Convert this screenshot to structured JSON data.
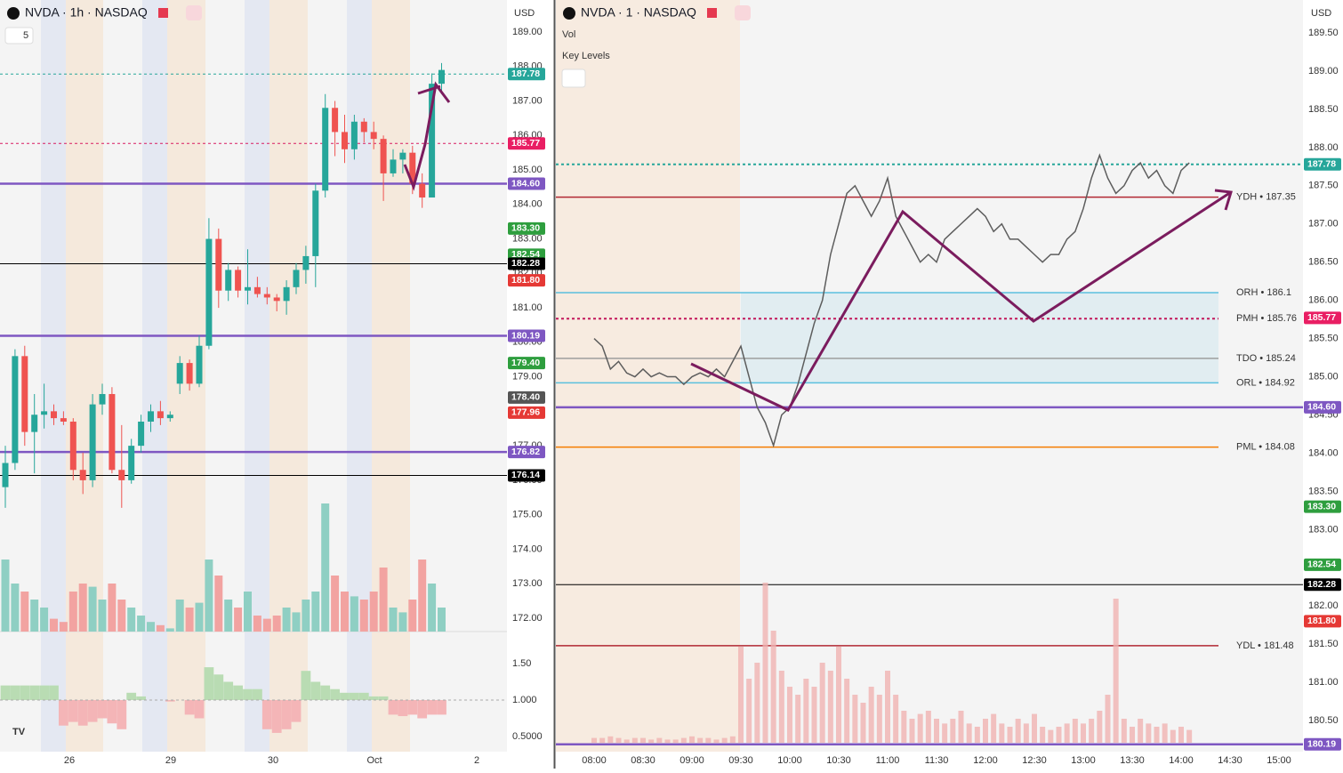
{
  "left": {
    "header": {
      "symbol": "NVDA · 1h · NASDAQ",
      "count": "5",
      "currency": "USD"
    },
    "yticks": [
      {
        "value": 189,
        "label": "189.00"
      },
      {
        "value": 188,
        "label": "188.00"
      },
      {
        "value": 187,
        "label": "187.00"
      },
      {
        "value": 186,
        "label": "186.00"
      },
      {
        "value": 185,
        "label": "185.00"
      },
      {
        "value": 184,
        "label": "184.00"
      },
      {
        "value": 183,
        "label": "183.00"
      },
      {
        "value": 182,
        "label": "182.00"
      },
      {
        "value": 181,
        "label": "181.00"
      },
      {
        "value": 180,
        "label": "180.00"
      },
      {
        "value": 179,
        "label": "179.00"
      },
      {
        "value": 178,
        "label": "178.00"
      },
      {
        "value": 177,
        "label": "177.00"
      },
      {
        "value": 176,
        "label": "176.00"
      },
      {
        "value": 175,
        "label": "175.00"
      },
      {
        "value": 174,
        "label": "174.00"
      },
      {
        "value": 173,
        "label": "173.00"
      },
      {
        "value": 172,
        "label": "172.00"
      }
    ],
    "xticks": [
      "26",
      "29",
      "30",
      "Oct",
      "2"
    ],
    "candles": [
      [
        175.8,
        177.0,
        175.2,
        176.5
      ],
      [
        176.5,
        179.8,
        176.3,
        179.6
      ],
      [
        179.6,
        179.9,
        177.0,
        177.4
      ],
      [
        177.4,
        178.5,
        176.2,
        177.9
      ],
      [
        177.9,
        178.8,
        177.5,
        178.0
      ],
      [
        178.0,
        178.2,
        177.6,
        177.8
      ],
      [
        177.8,
        178.0,
        177.6,
        177.7
      ],
      [
        177.7,
        177.8,
        176.0,
        176.3
      ],
      [
        176.3,
        176.8,
        175.6,
        176.0
      ],
      [
        176.0,
        178.5,
        175.8,
        178.2
      ],
      [
        178.2,
        178.8,
        177.9,
        178.5
      ],
      [
        178.5,
        178.7,
        176.2,
        176.3
      ],
      [
        176.3,
        177.6,
        175.2,
        176.0
      ],
      [
        176.0,
        177.2,
        175.9,
        177.0
      ],
      [
        177.0,
        177.9,
        176.8,
        177.7
      ],
      [
        177.7,
        178.2,
        177.4,
        178.0
      ],
      [
        178.0,
        178.3,
        177.6,
        177.8
      ],
      [
        177.8,
        178.0,
        177.7,
        177.9
      ],
      [
        178.8,
        179.6,
        178.5,
        179.4
      ],
      [
        179.4,
        179.5,
        178.6,
        178.8
      ],
      [
        178.8,
        180.2,
        178.7,
        179.9
      ],
      [
        179.9,
        183.6,
        179.8,
        183.0
      ],
      [
        183.0,
        183.3,
        181.0,
        181.5
      ],
      [
        181.5,
        182.3,
        181.2,
        182.1
      ],
      [
        182.1,
        182.2,
        181.3,
        181.5
      ],
      [
        181.5,
        182.7,
        181.1,
        181.6
      ],
      [
        181.6,
        181.9,
        181.3,
        181.4
      ],
      [
        181.4,
        181.6,
        181.1,
        181.3
      ],
      [
        181.3,
        181.4,
        180.9,
        181.2
      ],
      [
        181.2,
        181.8,
        180.8,
        181.6
      ],
      [
        181.6,
        182.3,
        181.4,
        182.1
      ],
      [
        182.1,
        182.8,
        181.7,
        182.5
      ],
      [
        182.5,
        184.6,
        181.6,
        184.4
      ],
      [
        184.4,
        187.2,
        184.2,
        186.8
      ],
      [
        186.8,
        187.0,
        185.4,
        186.1
      ],
      [
        186.1,
        186.6,
        185.2,
        185.6
      ],
      [
        185.6,
        186.6,
        185.3,
        186.4
      ],
      [
        186.4,
        186.5,
        185.8,
        186.1
      ],
      [
        186.1,
        186.4,
        185.6,
        185.9
      ],
      [
        185.9,
        186.0,
        184.1,
        184.9
      ],
      [
        184.9,
        185.6,
        184.8,
        185.3
      ],
      [
        185.3,
        185.6,
        184.9,
        185.5
      ],
      [
        185.5,
        185.7,
        184.3,
        184.6
      ],
      [
        184.6,
        184.9,
        183.9,
        184.2
      ],
      [
        184.2,
        187.8,
        184.2,
        187.5
      ],
      [
        187.5,
        188.1,
        187.2,
        187.9
      ]
    ],
    "up_color": "#26a69a",
    "down_color": "#ef5350",
    "volume": [
      45,
      30,
      25,
      20,
      15,
      8,
      6,
      25,
      30,
      28,
      20,
      30,
      20,
      15,
      10,
      6,
      4,
      2,
      20,
      15,
      18,
      45,
      35,
      20,
      15,
      25,
      10,
      8,
      10,
      15,
      12,
      20,
      25,
      80,
      35,
      25,
      22,
      20,
      25,
      40,
      15,
      12,
      20,
      45,
      30,
      15
    ],
    "indicator": [
      1.2,
      1.2,
      1.2,
      1.2,
      1.2,
      1.2,
      0.65,
      0.7,
      0.65,
      0.7,
      0.75,
      0.68,
      0.6,
      1.1,
      1.05,
      1.0,
      1.0,
      0.98,
      1.0,
      0.8,
      0.75,
      1.45,
      1.35,
      1.25,
      1.2,
      1.15,
      1.15,
      0.6,
      0.55,
      0.6,
      0.7,
      1.4,
      1.25,
      1.2,
      1.15,
      1.1,
      1.1,
      1.1,
      1.05,
      1.05,
      0.8,
      0.78,
      0.8,
      0.75,
      0.8,
      0.8
    ],
    "indicator_ticks": [
      {
        "value": 1.5,
        "label": "1.50"
      },
      {
        "value": 1,
        "label": "1.000"
      },
      {
        "value": 0.5,
        "label": "0.5000"
      }
    ],
    "lines": [
      {
        "value": 184.6,
        "color": "#7e57c2",
        "style": "solid"
      },
      {
        "value": 180.19,
        "color": "#7e57c2",
        "style": "solid"
      },
      {
        "value": 176.82,
        "color": "#7e57c2",
        "style": "solid"
      },
      {
        "value": 176.14,
        "color": "#000000",
        "style": "thin"
      },
      {
        "value": 182.28,
        "color": "#000000",
        "style": "thin"
      },
      {
        "value": 185.77,
        "color": "#d81b60",
        "style": "dotted"
      },
      {
        "value": 187.78,
        "color": "#26a69a",
        "style": "dotted"
      }
    ],
    "tags": [
      {
        "value": 187.78,
        "label": "187.78",
        "color": "#26a69a"
      },
      {
        "value": 185.77,
        "label": "185.77",
        "color": "#e91e63"
      },
      {
        "value": 184.6,
        "label": "184.60",
        "color": "#7e57c2"
      },
      {
        "value": 183.3,
        "label": "183.30",
        "color": "#2e9e3e"
      },
      {
        "value": 182.54,
        "label": "182.54",
        "color": "#2e9e3e"
      },
      {
        "value": 182.28,
        "label": "182.28",
        "color": "#000000"
      },
      {
        "value": 181.8,
        "label": "181.80",
        "color": "#e53935"
      },
      {
        "value": 180.19,
        "label": "180.19",
        "color": "#7e57c2"
      },
      {
        "value": 179.4,
        "label": "179.40",
        "color": "#2e9e3e"
      },
      {
        "value": 178.4,
        "label": "178.40",
        "color": "#555555"
      },
      {
        "value": 177.96,
        "label": "177.96",
        "color": "#e53935"
      },
      {
        "value": 176.82,
        "label": "176.82",
        "color": "#7e57c2"
      },
      {
        "value": 176.14,
        "label": "176.14",
        "color": "#000000"
      }
    ]
  },
  "right": {
    "header": {
      "symbol": "NVDA · 1 · NASDAQ",
      "indicator_1": "Vol",
      "indicator_2": "Key Levels",
      "currency": "USD"
    },
    "yticks": [
      {
        "value": 189.5,
        "label": "189.50"
      },
      {
        "value": 189,
        "label": "189.00"
      },
      {
        "value": 188.5,
        "label": "188.50"
      },
      {
        "value": 188,
        "label": "188.00"
      },
      {
        "value": 187.5,
        "label": "187.50"
      },
      {
        "value": 187,
        "label": "187.00"
      },
      {
        "value": 186.5,
        "label": "186.50"
      },
      {
        "value": 186,
        "label": "186.00"
      },
      {
        "value": 185.5,
        "label": "185.50"
      },
      {
        "value": 185,
        "label": "185.00"
      },
      {
        "value": 184.5,
        "label": "184.50"
      },
      {
        "value": 184,
        "label": "184.00"
      },
      {
        "value": 183.5,
        "label": "183.50"
      },
      {
        "value": 183,
        "label": "183.00"
      },
      {
        "value": 182.5,
        "label": "182.50"
      },
      {
        "value": 182,
        "label": "182.00"
      },
      {
        "value": 181.5,
        "label": "181.50"
      },
      {
        "value": 181,
        "label": "181.00"
      },
      {
        "value": 180.5,
        "label": "180.50"
      }
    ],
    "xticks": [
      "08:00",
      "08:30",
      "09:00",
      "09:30",
      "10:00",
      "10:30",
      "11:00",
      "11:30",
      "12:00",
      "12:30",
      "13:00",
      "13:30",
      "14:00",
      "14:30",
      "15:00"
    ],
    "price": [
      185.5,
      185.4,
      185.1,
      185.2,
      185.05,
      185.0,
      185.1,
      185.0,
      185.05,
      185.0,
      185.0,
      184.9,
      185.0,
      185.05,
      185.0,
      185.1,
      185.0,
      185.2,
      185.4,
      185.0,
      184.6,
      184.4,
      184.1,
      184.5,
      184.6,
      184.9,
      185.3,
      185.7,
      186.0,
      186.6,
      187.0,
      187.4,
      187.5,
      187.3,
      187.1,
      187.3,
      187.6,
      187.1,
      186.9,
      186.7,
      186.5,
      186.6,
      186.5,
      186.8,
      186.9,
      187.0,
      187.1,
      187.2,
      187.1,
      186.9,
      187.0,
      186.8,
      186.8,
      186.7,
      186.6,
      186.5,
      186.6,
      186.6,
      186.8,
      186.9,
      187.2,
      187.6,
      187.9,
      187.6,
      187.4,
      187.5,
      187.7,
      187.8,
      187.6,
      187.7,
      187.5,
      187.4,
      187.7,
      187.8
    ],
    "price_color": "#5d5d5d",
    "volume": [
      3,
      3,
      4,
      3,
      2,
      3,
      3,
      2,
      3,
      2,
      2,
      3,
      4,
      3,
      3,
      2,
      3,
      4,
      60,
      40,
      50,
      100,
      70,
      45,
      35,
      30,
      40,
      35,
      50,
      45,
      60,
      40,
      30,
      25,
      35,
      30,
      45,
      30,
      20,
      15,
      18,
      20,
      15,
      12,
      15,
      20,
      12,
      10,
      15,
      18,
      12,
      10,
      15,
      12,
      18,
      10,
      8,
      10,
      12,
      15,
      12,
      15,
      20,
      30,
      90,
      15,
      10,
      15,
      12,
      10,
      12,
      8,
      10,
      8
    ],
    "levels": [
      {
        "text": "YDH • 187.35",
        "value": 187.35,
        "color": "#b22833",
        "style": "solid"
      },
      {
        "text": "ORH • 186.1",
        "value": 186.1,
        "color": "#5bc0de",
        "style": "solid"
      },
      {
        "text": "PMH • 185.76",
        "value": 185.76,
        "color": "#c2185b",
        "style": "dotted"
      },
      {
        "text": "TDO • 185.24",
        "value": 185.24,
        "color": "#9e9e9e",
        "style": "solid"
      },
      {
        "text": "ORL • 184.92",
        "value": 184.92,
        "color": "#5bc0de",
        "style": "solid"
      },
      {
        "text": "PML • 184.08",
        "value": 184.08,
        "color": "#f57c00",
        "style": "solid"
      },
      {
        "text": "YDL • 181.48",
        "value": 181.48,
        "color": "#b22833",
        "style": "solid"
      }
    ],
    "lines": [
      {
        "value": 184.6,
        "color": "#7e57c2",
        "style": "solid"
      },
      {
        "value": 180.19,
        "color": "#7e57c2",
        "style": "solid"
      },
      {
        "value": 182.28,
        "color": "#000000",
        "style": "thin"
      },
      {
        "value": 187.78,
        "color": "#26a69a",
        "style": "dotted"
      }
    ],
    "tags": [
      {
        "value": 187.78,
        "label": "187.78",
        "color": "#26a69a"
      },
      {
        "value": 185.77,
        "label": "185.77",
        "color": "#e91e63"
      },
      {
        "value": 184.6,
        "label": "184.60",
        "color": "#7e57c2"
      },
      {
        "value": 183.3,
        "label": "183.30",
        "color": "#2e9e3e"
      },
      {
        "value": 182.54,
        "label": "182.54",
        "color": "#2e9e3e"
      },
      {
        "value": 182.28,
        "label": "182.28",
        "color": "#000000"
      },
      {
        "value": 181.8,
        "label": "181.80",
        "color": "#e53935"
      },
      {
        "value": 180.19,
        "label": "180.19",
        "color": "#7e57c2"
      }
    ]
  }
}
